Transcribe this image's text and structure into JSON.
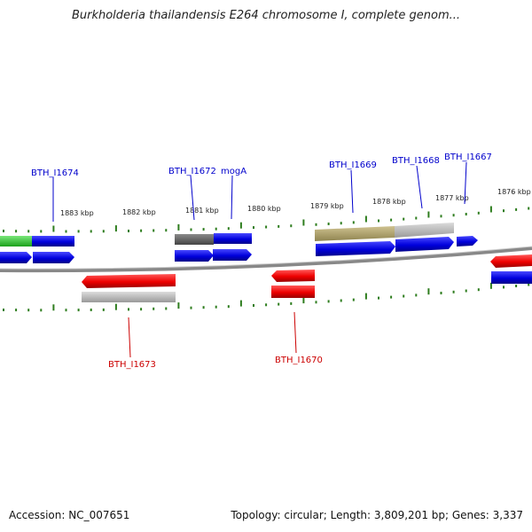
{
  "title": "Burkholderia thailandensis E264 chromosome I, complete genom...",
  "footer": {
    "accession": "Accession: NC_007651",
    "info": "Topology: circular; Length: 3,809,201 bp; Genes: 3,337"
  },
  "colors": {
    "forward_label": "#0000cc",
    "reverse_label": "#cc0000",
    "tick": "#2e7d1e",
    "backbone": "#888888"
  },
  "ruler_labels": [
    "1883 kbp",
    "1882 kbp",
    "1881 kbp",
    "1880 kbp",
    "1879 kbp",
    "1878 kbp",
    "1877 kbp",
    "1876 kbp"
  ],
  "gene_labels": {
    "forward": [
      "BTH_I1674",
      "BTH_I1672",
      "mogA",
      "BTH_I1669",
      "BTH_I1668",
      "BTH_I1667"
    ],
    "reverse": [
      "BTH_I1673",
      "BTH_I1670"
    ]
  }
}
